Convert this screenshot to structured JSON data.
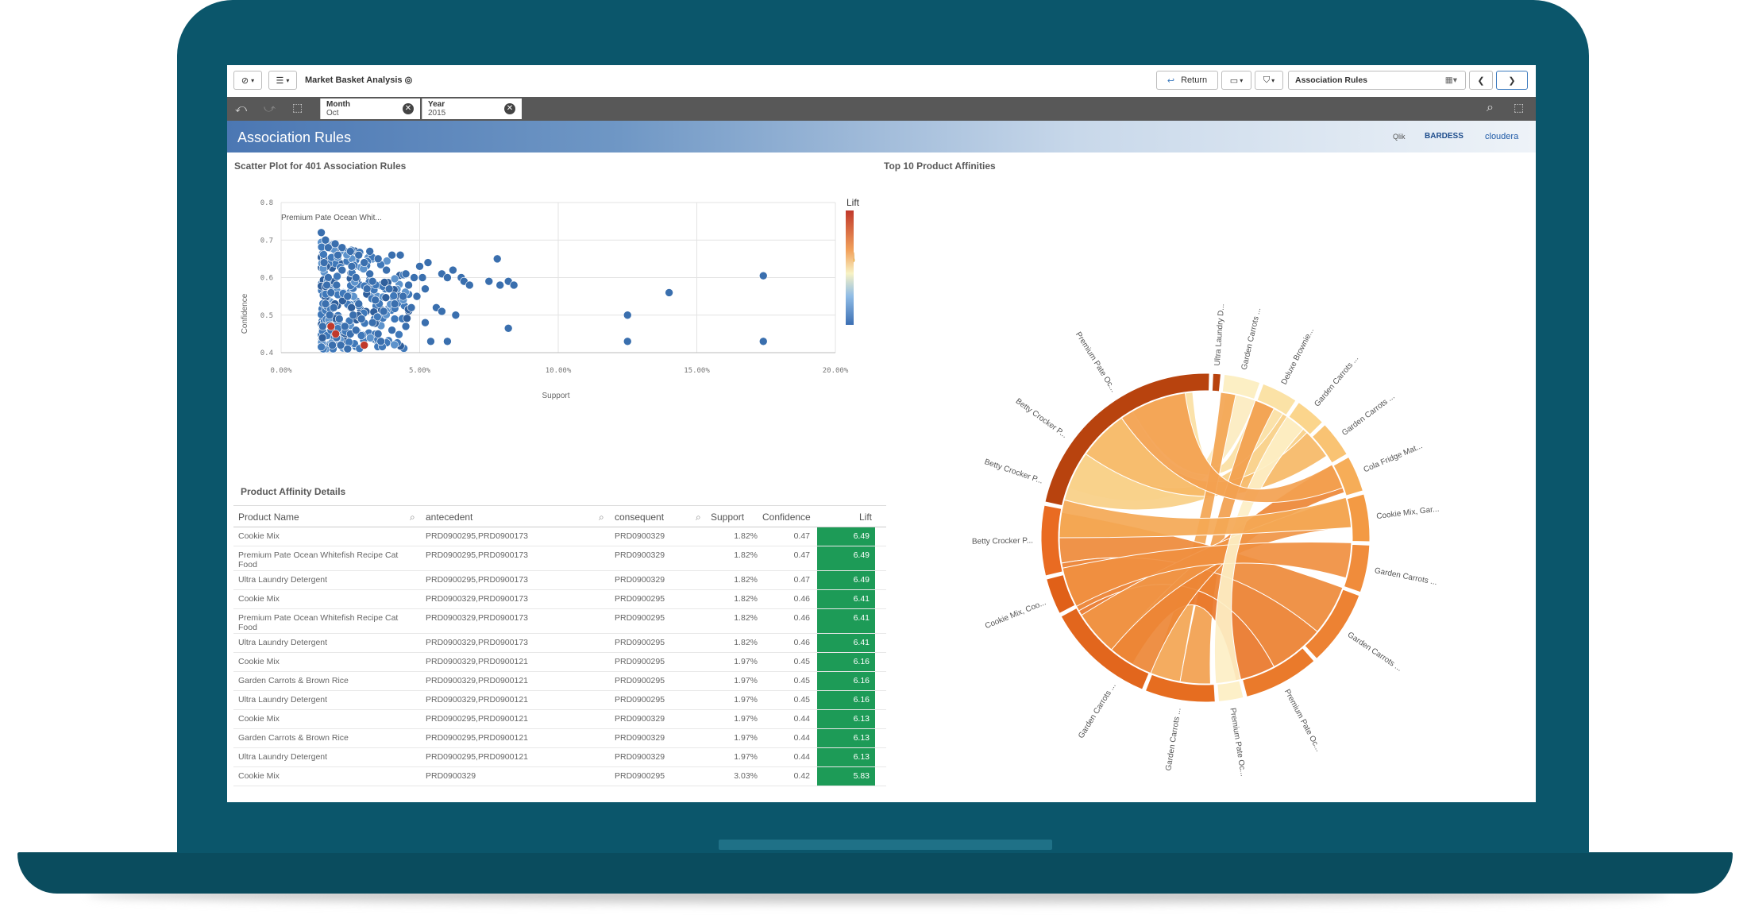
{
  "toolbar": {
    "app_title": "Market Basket Analysis",
    "return_label": "Return",
    "sheet_name": "Association Rules"
  },
  "selections": [
    {
      "field": "Month",
      "value": "Oct"
    },
    {
      "field": "Year",
      "value": "2015"
    }
  ],
  "banner": {
    "title": "Association Rules",
    "logos": [
      "Qlik",
      "BARDESS",
      "cloudera"
    ]
  },
  "scatter": {
    "title": "Scatter Plot for 401 Association Rules",
    "callout": "Premium Pate Ocean Whit...",
    "legend_title": "Lift"
  },
  "chord": {
    "title": "Top 10 Product Affinities",
    "labels": [
      "Ultra Laundry D...",
      "Garden Carrots ...",
      "Deluxe Brownie...",
      "Garden Carrots ...",
      "Garden Carrots ...",
      "Cola Fridge Mat...",
      "Cookie Mix, Gar...",
      "Garden Carrots ...",
      "Garden Carrots ...",
      "Premium Pate Oc...",
      "Betty Crocker P...",
      "Betty Crocker P...",
      "Betty Crocker P...",
      "Cookie Mix, Coo...",
      "Garden Carrots ...",
      "Garden Carrots ...",
      "Premium Pate Oc...",
      "Premium Pate Oc..."
    ]
  },
  "table": {
    "title": "Product Affinity Details",
    "columns": [
      "Product Name",
      "antecedent",
      "consequent",
      "Support",
      "Confidence",
      "Lift"
    ],
    "rows": [
      [
        "Cookie Mix",
        "PRD0900295,PRD0900173",
        "PRD0900329",
        "1.82%",
        "0.47",
        "6.49"
      ],
      [
        "Premium Pate Ocean Whitefish Recipe Cat Food",
        "PRD0900295,PRD0900173",
        "PRD0900329",
        "1.82%",
        "0.47",
        "6.49"
      ],
      [
        "Ultra Laundry Detergent",
        "PRD0900295,PRD0900173",
        "PRD0900329",
        "1.82%",
        "0.47",
        "6.49"
      ],
      [
        "Cookie Mix",
        "PRD0900329,PRD0900173",
        "PRD0900295",
        "1.82%",
        "0.46",
        "6.41"
      ],
      [
        "Premium Pate Ocean Whitefish Recipe Cat Food",
        "PRD0900329,PRD0900173",
        "PRD0900295",
        "1.82%",
        "0.46",
        "6.41"
      ],
      [
        "Ultra Laundry Detergent",
        "PRD0900329,PRD0900173",
        "PRD0900295",
        "1.82%",
        "0.46",
        "6.41"
      ],
      [
        "Cookie Mix",
        "PRD0900329,PRD0900121",
        "PRD0900295",
        "1.97%",
        "0.45",
        "6.16"
      ],
      [
        "Garden Carrots & Brown Rice",
        "PRD0900329,PRD0900121",
        "PRD0900295",
        "1.97%",
        "0.45",
        "6.16"
      ],
      [
        "Ultra Laundry Detergent",
        "PRD0900329,PRD0900121",
        "PRD0900295",
        "1.97%",
        "0.45",
        "6.16"
      ],
      [
        "Cookie Mix",
        "PRD0900295,PRD0900121",
        "PRD0900329",
        "1.97%",
        "0.44",
        "6.13"
      ],
      [
        "Garden Carrots & Brown Rice",
        "PRD0900295,PRD0900121",
        "PRD0900329",
        "1.97%",
        "0.44",
        "6.13"
      ],
      [
        "Ultra Laundry Detergent",
        "PRD0900295,PRD0900121",
        "PRD0900329",
        "1.97%",
        "0.44",
        "6.13"
      ],
      [
        "Cookie Mix",
        "PRD0900329",
        "PRD0900295",
        "3.03%",
        "0.42",
        "5.83"
      ]
    ]
  },
  "chart_data": [
    {
      "type": "scatter",
      "title": "Scatter Plot for 401 Association Rules",
      "xlabel": "Support",
      "ylabel": "Confidence",
      "xlim": [
        0,
        0.2
      ],
      "ylim": [
        0.4,
        0.8
      ],
      "xticks": [
        "0.00%",
        "5.00%",
        "10.00%",
        "15.00%",
        "20.00%"
      ],
      "yticks": [
        "0.4",
        "0.5",
        "0.6",
        "0.7",
        "0.8"
      ],
      "legend": "Lift",
      "color_scale": [
        "#3c6fb3",
        "#f7f2c4",
        "#c0392b"
      ],
      "highlight_points": [
        {
          "x": 0.018,
          "y": 0.47,
          "lift": 6.49
        },
        {
          "x": 0.0197,
          "y": 0.45,
          "lift": 6.16
        },
        {
          "x": 0.03,
          "y": 0.42,
          "lift": 5.83
        }
      ],
      "points": [
        {
          "x": 0.0145,
          "y": 0.72
        },
        {
          "x": 0.016,
          "y": 0.7
        },
        {
          "x": 0.017,
          "y": 0.68
        },
        {
          "x": 0.0195,
          "y": 0.69
        },
        {
          "x": 0.022,
          "y": 0.68
        },
        {
          "x": 0.025,
          "y": 0.67
        },
        {
          "x": 0.028,
          "y": 0.66
        },
        {
          "x": 0.032,
          "y": 0.67
        },
        {
          "x": 0.035,
          "y": 0.65
        },
        {
          "x": 0.04,
          "y": 0.66
        },
        {
          "x": 0.043,
          "y": 0.66
        },
        {
          "x": 0.038,
          "y": 0.62
        },
        {
          "x": 0.045,
          "y": 0.61
        },
        {
          "x": 0.048,
          "y": 0.6
        },
        {
          "x": 0.051,
          "y": 0.6
        },
        {
          "x": 0.05,
          "y": 0.63
        },
        {
          "x": 0.053,
          "y": 0.64
        },
        {
          "x": 0.058,
          "y": 0.61
        },
        {
          "x": 0.06,
          "y": 0.6
        },
        {
          "x": 0.062,
          "y": 0.62
        },
        {
          "x": 0.065,
          "y": 0.6
        },
        {
          "x": 0.066,
          "y": 0.59
        },
        {
          "x": 0.068,
          "y": 0.58
        },
        {
          "x": 0.075,
          "y": 0.59
        },
        {
          "x": 0.079,
          "y": 0.58
        },
        {
          "x": 0.082,
          "y": 0.59
        },
        {
          "x": 0.084,
          "y": 0.58
        },
        {
          "x": 0.078,
          "y": 0.65
        },
        {
          "x": 0.082,
          "y": 0.465
        },
        {
          "x": 0.047,
          "y": 0.52
        },
        {
          "x": 0.056,
          "y": 0.52
        },
        {
          "x": 0.058,
          "y": 0.51
        },
        {
          "x": 0.063,
          "y": 0.5
        },
        {
          "x": 0.052,
          "y": 0.48
        },
        {
          "x": 0.045,
          "y": 0.47
        },
        {
          "x": 0.04,
          "y": 0.46
        },
        {
          "x": 0.036,
          "y": 0.43
        },
        {
          "x": 0.054,
          "y": 0.43
        },
        {
          "x": 0.06,
          "y": 0.43
        },
        {
          "x": 0.03,
          "y": 0.42
        },
        {
          "x": 0.025,
          "y": 0.45
        },
        {
          "x": 0.02,
          "y": 0.44
        },
        {
          "x": 0.018,
          "y": 0.46
        },
        {
          "x": 0.015,
          "y": 0.47
        },
        {
          "x": 0.016,
          "y": 0.53
        },
        {
          "x": 0.018,
          "y": 0.56
        },
        {
          "x": 0.02,
          "y": 0.58
        },
        {
          "x": 0.022,
          "y": 0.62
        },
        {
          "x": 0.024,
          "y": 0.55
        },
        {
          "x": 0.026,
          "y": 0.5
        },
        {
          "x": 0.028,
          "y": 0.53
        },
        {
          "x": 0.031,
          "y": 0.57
        },
        {
          "x": 0.034,
          "y": 0.54
        },
        {
          "x": 0.037,
          "y": 0.51
        },
        {
          "x": 0.039,
          "y": 0.57
        },
        {
          "x": 0.041,
          "y": 0.53
        },
        {
          "x": 0.044,
          "y": 0.55
        },
        {
          "x": 0.046,
          "y": 0.58
        },
        {
          "x": 0.049,
          "y": 0.55
        },
        {
          "x": 0.052,
          "y": 0.57
        },
        {
          "x": 0.017,
          "y": 0.6
        },
        {
          "x": 0.019,
          "y": 0.52
        },
        {
          "x": 0.021,
          "y": 0.49
        },
        {
          "x": 0.023,
          "y": 0.47
        },
        {
          "x": 0.027,
          "y": 0.46
        },
        {
          "x": 0.029,
          "y": 0.49
        },
        {
          "x": 0.033,
          "y": 0.48
        },
        {
          "x": 0.035,
          "y": 0.45
        },
        {
          "x": 0.0155,
          "y": 0.64
        },
        {
          "x": 0.0165,
          "y": 0.58
        },
        {
          "x": 0.0175,
          "y": 0.5
        },
        {
          "x": 0.0185,
          "y": 0.42
        },
        {
          "x": 0.0205,
          "y": 0.66
        },
        {
          "x": 0.0215,
          "y": 0.42
        },
        {
          "x": 0.024,
          "y": 0.41
        },
        {
          "x": 0.0255,
          "y": 0.63
        },
        {
          "x": 0.027,
          "y": 0.6
        },
        {
          "x": 0.03,
          "y": 0.64
        },
        {
          "x": 0.032,
          "y": 0.61
        },
        {
          "x": 0.033,
          "y": 0.59
        },
        {
          "x": 0.125,
          "y": 0.5
        },
        {
          "x": 0.125,
          "y": 0.43
        },
        {
          "x": 0.14,
          "y": 0.56
        },
        {
          "x": 0.174,
          "y": 0.605
        },
        {
          "x": 0.174,
          "y": 0.43
        }
      ]
    },
    {
      "type": "chord",
      "title": "Top 10 Product Affinities",
      "nodes": [
        "Ultra Laundry D...",
        "Garden Carrots ...",
        "Deluxe Brownie...",
        "Garden Carrots ...",
        "Garden Carrots ...",
        "Cola Fridge Mat...",
        "Cookie Mix, Gar...",
        "Garden Carrots ...",
        "Garden Carrots ...",
        "Premium Pate Oc...",
        "Betty Crocker P...",
        "Betty Crocker P...",
        "Betty Crocker P...",
        "Cookie Mix, Coo...",
        "Garden Carrots ...",
        "Garden Carrots ...",
        "Premium Pate Oc...",
        "Premium Pate Oc..."
      ]
    }
  ]
}
